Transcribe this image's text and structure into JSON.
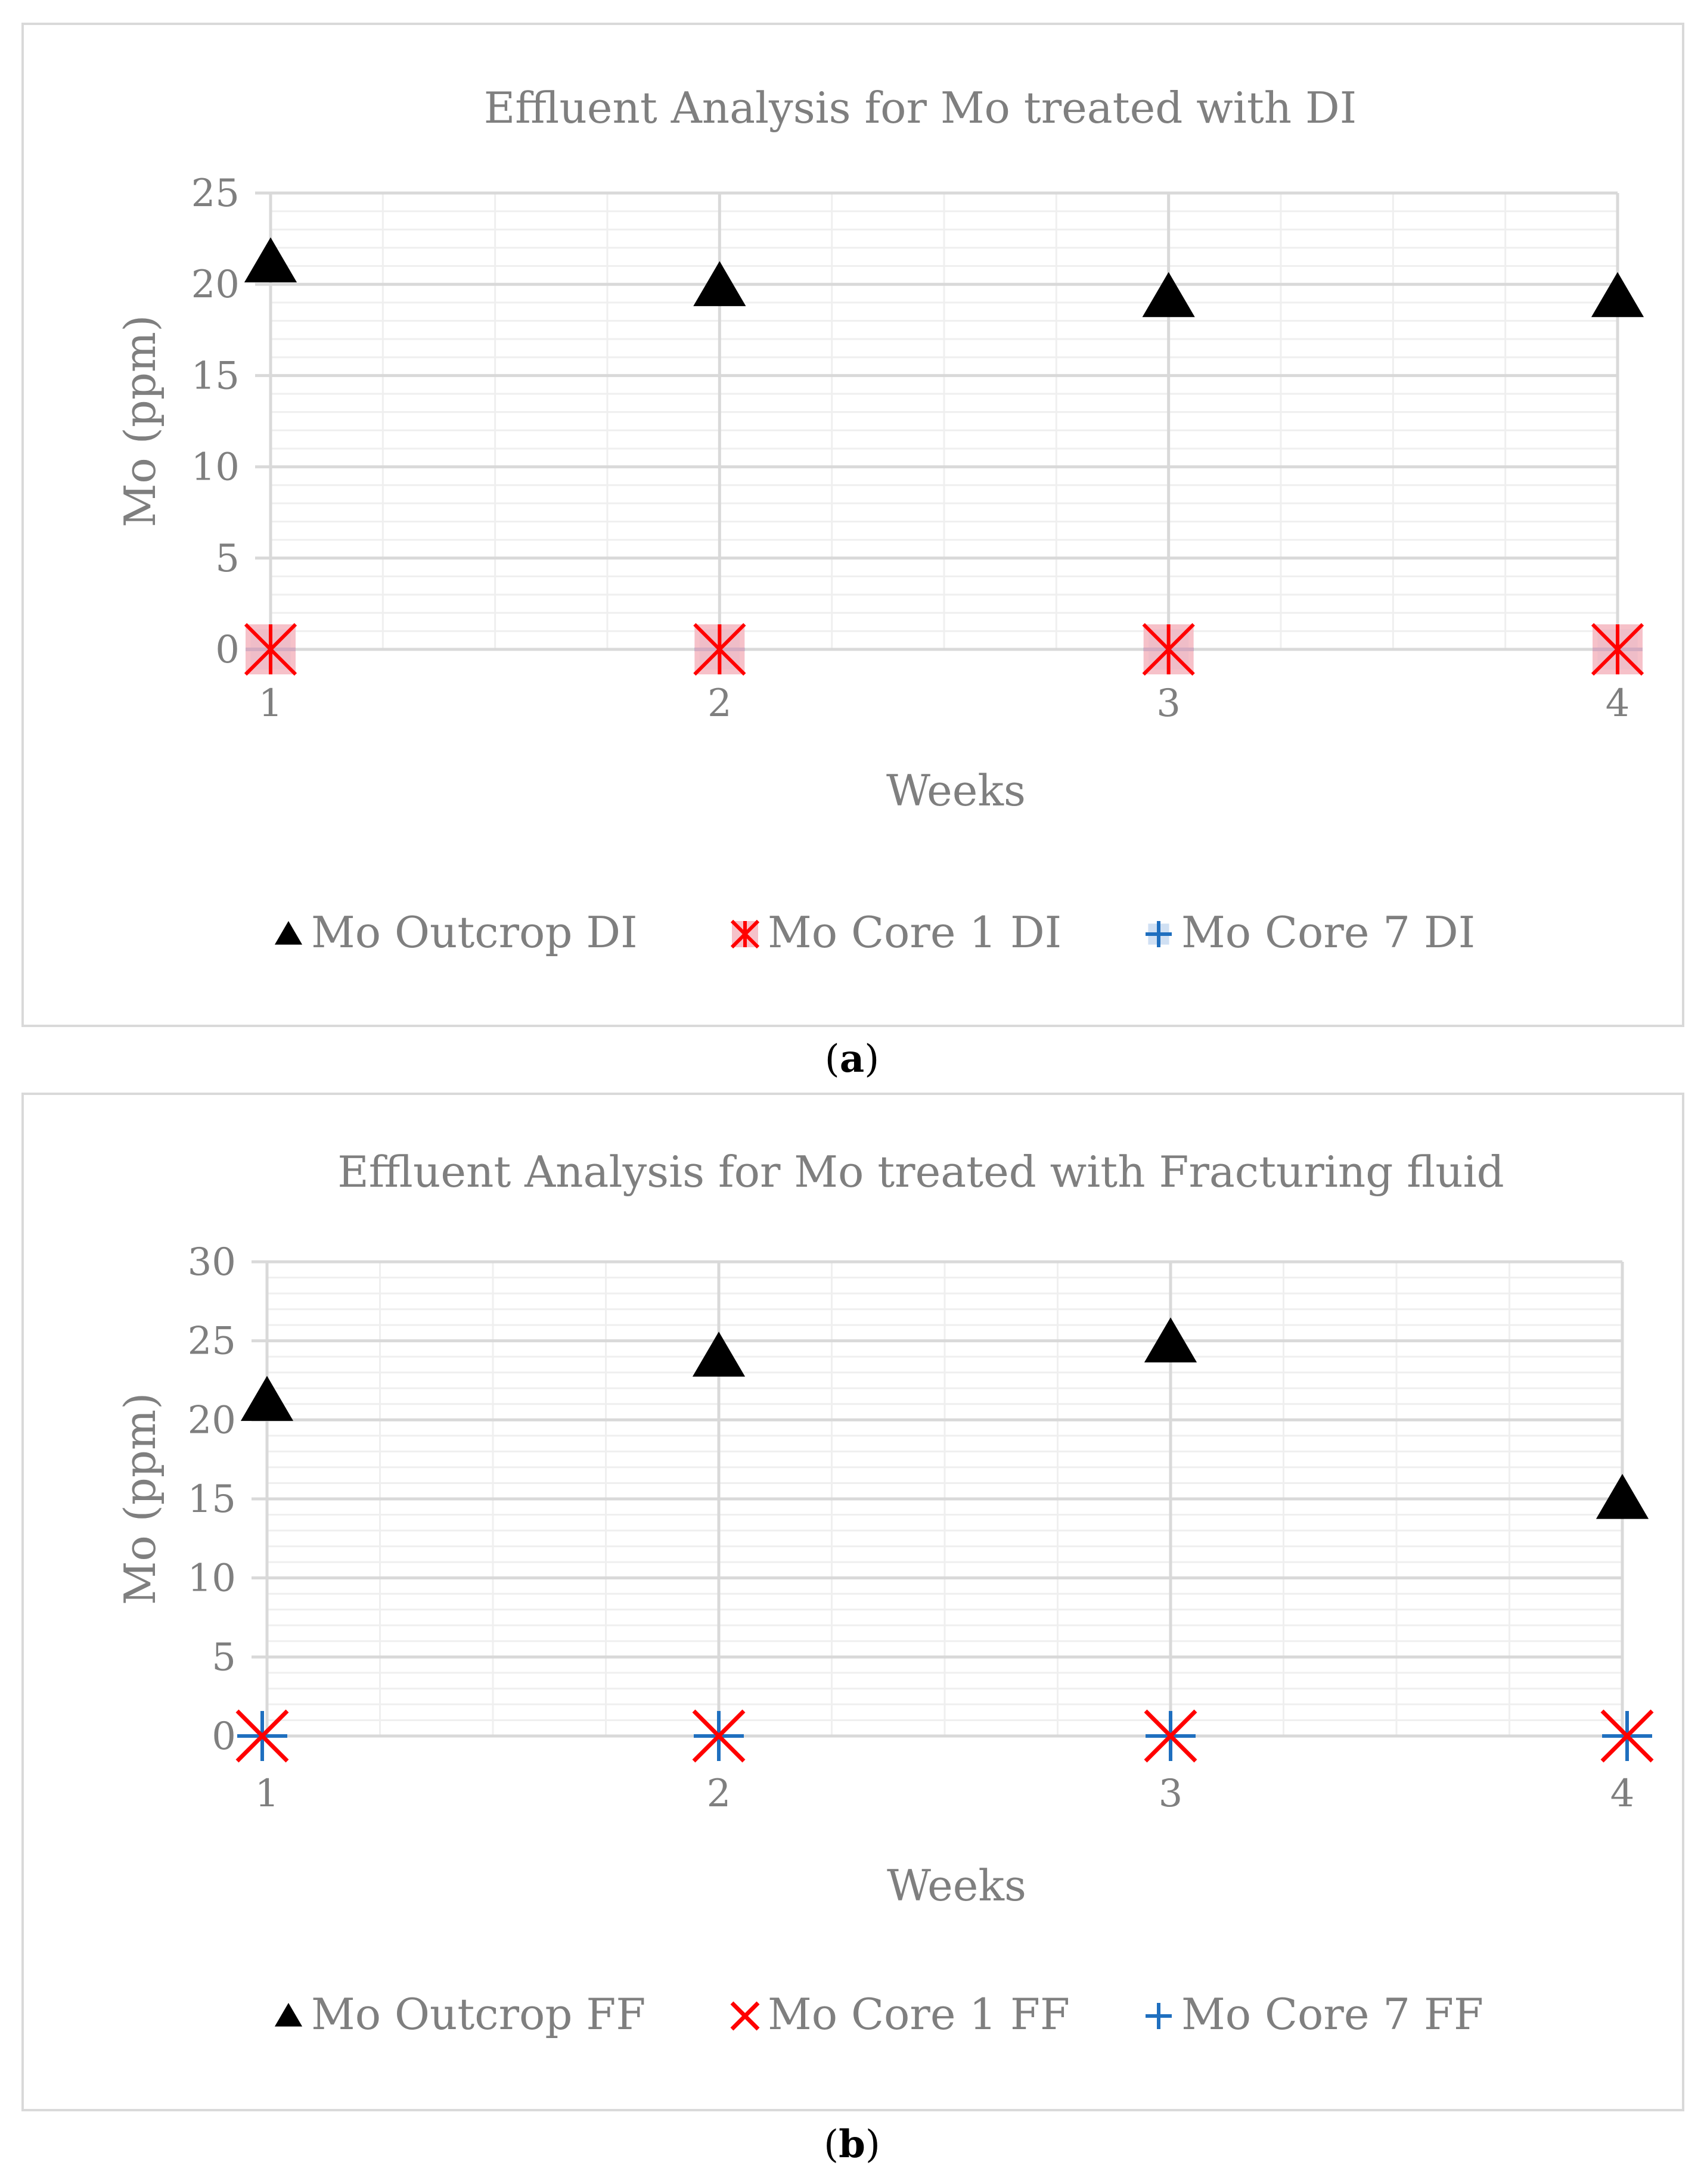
{
  "captions": [
    {
      "open": "(",
      "letter": "a",
      "close": ")"
    },
    {
      "open": "(",
      "letter": "b",
      "close": ")"
    }
  ],
  "colors": {
    "outcrop": "#000000",
    "core1": "#ff0000",
    "core7": "#1f6fbf",
    "text": "#7f7f7f",
    "major_grid": "#d9d9d9",
    "minor_grid": "#efefef"
  },
  "chart_data": [
    {
      "type": "scatter",
      "title": "Effluent Analysis for Mo treated with DI",
      "xlabel": "Weeks",
      "ylabel": "Mo (ppm)",
      "x": [
        1,
        2,
        3,
        4
      ],
      "xlim": [
        1,
        4
      ],
      "ylim": [
        0,
        25
      ],
      "y_ticks": [
        0,
        5,
        10,
        15,
        20,
        25
      ],
      "x_ticks": [
        1,
        2,
        3,
        4
      ],
      "grid": true,
      "legend_position": "bottom",
      "series": [
        {
          "name": "Mo Outcrop DI",
          "marker": "triangle",
          "values": [
            21.2,
            19.9,
            19.3,
            19.3
          ]
        },
        {
          "name": "Mo Core 1 DI",
          "marker": "star-square",
          "values": [
            0,
            0,
            0,
            0
          ]
        },
        {
          "name": "Mo Core 7 DI",
          "marker": "plus-square",
          "values": [
            0,
            0,
            0,
            0
          ]
        }
      ]
    },
    {
      "type": "scatter",
      "title": "Effluent Analysis for Mo treated with Fracturing fluid",
      "xlabel": "Weeks",
      "ylabel": "Mo (ppm)",
      "x": [
        1,
        2,
        3,
        4
      ],
      "xlim": [
        1,
        4
      ],
      "ylim": [
        0,
        30
      ],
      "y_ticks": [
        0,
        5,
        10,
        15,
        20,
        25,
        30
      ],
      "x_ticks": [
        1,
        2,
        3,
        4
      ],
      "grid": true,
      "legend_position": "bottom",
      "series": [
        {
          "name": "Mo Outcrop FF",
          "marker": "triangle",
          "values": [
            21.2,
            24.0,
            24.9,
            15.0
          ]
        },
        {
          "name": "Mo Core 1 FF",
          "marker": "x",
          "values": [
            0,
            0,
            0,
            0
          ]
        },
        {
          "name": "Mo Core 7 FF",
          "marker": "plus",
          "values": [
            0,
            0,
            0,
            0
          ]
        }
      ]
    }
  ]
}
